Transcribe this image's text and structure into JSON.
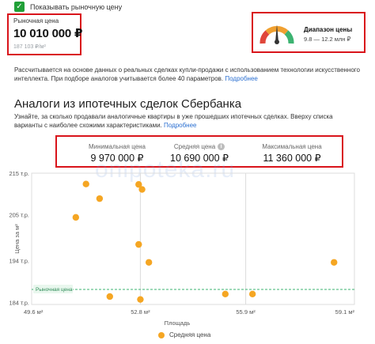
{
  "checkbox": {
    "label": "Показывать рыночную цену",
    "checked": true
  },
  "market_price": {
    "caption": "Рыночная цена",
    "value": "10 010 000 ₽",
    "per_sqm": "187 103 ₽/м²"
  },
  "price_range": {
    "title": "Диапазон цены",
    "value": "9.8 — 12.2 млн ₽",
    "gauge_icon": "gauge-icon",
    "gauge_colors": [
      "#e0463a",
      "#f0a030",
      "#3cb371"
    ]
  },
  "description": {
    "text": "Рассчитывается на основе данных о реальных сделках купли-продажи с использованием технологии искусственного интеллекта. При подборе аналогов учитывается более 40 параметров.",
    "link": "Подробнее"
  },
  "section": {
    "title": "Аналоги из ипотечных сделок Сбербанка",
    "text": "Узнайте, за сколько продавали аналогичные квартиры в уже прошедших ипотечных сделках. Вверху списка варианты с наиболее схожими характеристиками.",
    "link": "Подробнее"
  },
  "stats": {
    "min_label": "Минимальная цена",
    "min_value": "9 970 000 ₽",
    "avg_label": "Средняя цена",
    "avg_value": "10 690 000 ₽",
    "max_label": "Максимальная цена",
    "max_value": "11 360 000 ₽"
  },
  "watermark": "onipoteka.ru",
  "chart_data": {
    "type": "scatter",
    "xlabel": "Площадь",
    "ylabel": "Цена за м²",
    "x_ticks": [
      "49.6 м²",
      "52.8 м²",
      "55.9 м²",
      "59.1 м²"
    ],
    "x_tick_values": [
      49.6,
      52.8,
      55.9,
      59.1
    ],
    "y_ticks": [
      "215 т.р.",
      "205 т.р.",
      "194 т.р.",
      "184 т.р."
    ],
    "y_tick_values": [
      215,
      205,
      194,
      184
    ],
    "xlim": [
      49.6,
      59.1
    ],
    "ylim": [
      183.5,
      215
    ],
    "grid": true,
    "market_line": {
      "label": "Рыночная цена",
      "value": 187.1,
      "color": "#3cb371"
    },
    "series": [
      {
        "name": "Средняя цена",
        "color": "#f5a623",
        "points": [
          {
            "x": 50.9,
            "y": 204.4
          },
          {
            "x": 51.2,
            "y": 212.4
          },
          {
            "x": 51.6,
            "y": 208.9
          },
          {
            "x": 51.9,
            "y": 185.4
          },
          {
            "x": 52.75,
            "y": 212.3
          },
          {
            "x": 52.75,
            "y": 197.9
          },
          {
            "x": 52.8,
            "y": 184.7
          },
          {
            "x": 52.85,
            "y": 211.1
          },
          {
            "x": 53.05,
            "y": 193.6
          },
          {
            "x": 55.3,
            "y": 186.0
          },
          {
            "x": 56.1,
            "y": 186.0
          },
          {
            "x": 58.5,
            "y": 193.6
          }
        ]
      }
    ]
  }
}
